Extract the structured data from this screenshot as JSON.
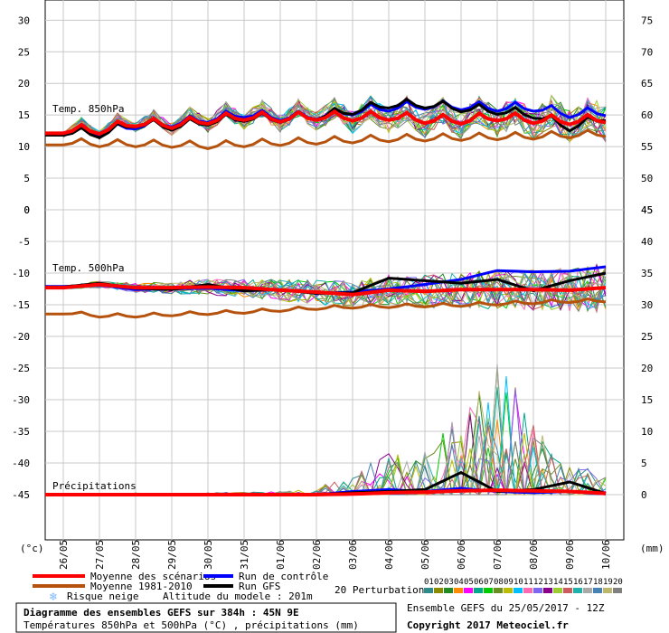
{
  "chart_data": {
    "type": "line",
    "x": [
      "26/05",
      "27/05",
      "28/05",
      "29/05",
      "30/05",
      "31/05",
      "01/06",
      "02/06",
      "03/06",
      "04/06",
      "05/06",
      "06/06",
      "07/06",
      "08/06",
      "09/06",
      "10/06"
    ],
    "panels": {
      "t850": {
        "label": "Temp. 850hPa",
        "left_ticks": [
          "30",
          "25",
          "20",
          "15",
          "10",
          "5",
          "0"
        ],
        "right_ticks": [
          "75",
          "70",
          "65",
          "60",
          "55",
          "50",
          "45"
        ],
        "ylim": [
          0,
          30
        ],
        "mean": [
          12.5,
          12.4,
          13.6,
          13.3,
          14.0,
          14.6,
          14.3,
          14.6,
          14.5,
          14.6,
          14.1,
          14.0,
          14.5,
          14.1,
          13.9,
          14.2
        ],
        "control": [
          12.3,
          12.0,
          13.2,
          13.5,
          14.2,
          15.0,
          14.5,
          14.7,
          15.4,
          16.0,
          16.3,
          16.2,
          16.0,
          16.0,
          15.0,
          15.3
        ],
        "gfs": [
          12.2,
          11.8,
          13.5,
          13.0,
          13.8,
          14.4,
          14.2,
          14.6,
          15.5,
          16.5,
          16.5,
          15.9,
          15.5,
          14.9,
          12.9,
          14.5
        ],
        "climatology": [
          10.6,
          10.3,
          10.3,
          10.2,
          10.0,
          10.3,
          10.5,
          10.7,
          10.9,
          11.1,
          11.2,
          11.3,
          11.4,
          11.5,
          11.7,
          11.9
        ]
      },
      "t500": {
        "label": "Temp. 500hPa",
        "left_ticks": [
          "0",
          "-5",
          "-10",
          "-15",
          "-20",
          "-25",
          "-30",
          "-35",
          "-40",
          "-45"
        ],
        "right_ticks": [
          "45",
          "40",
          "35",
          "30",
          "25",
          "20",
          "15",
          "10",
          "5",
          "0"
        ],
        "ylim": [
          -45,
          0
        ],
        "mean": [
          -12.3,
          -11.8,
          -12.3,
          -12.3,
          -12.2,
          -12.3,
          -12.7,
          -13.0,
          -13.4,
          -12.7,
          -12.9,
          -12.6,
          -12.6,
          -12.6,
          -12.7,
          -12.3
        ],
        "control": [
          -12.1,
          -11.9,
          -12.6,
          -12.5,
          -12.4,
          -12.8,
          -12.6,
          -13.2,
          -13.0,
          -12.5,
          -11.8,
          -11.0,
          -9.6,
          -9.8,
          -9.7,
          -9.0
        ],
        "gfs": [
          -12.2,
          -11.6,
          -12.4,
          -12.6,
          -11.8,
          -12.8,
          -12.6,
          -13.2,
          -13.1,
          -10.8,
          -11.2,
          -11.6,
          -11.0,
          -12.8,
          -11.2,
          -10.0
        ],
        "climatology": [
          -16.3,
          -16.8,
          -16.8,
          -16.6,
          -16.4,
          -16.2,
          -15.9,
          -15.6,
          -15.4,
          -15.3,
          -15.2,
          -15.1,
          -14.9,
          -14.7,
          -14.5,
          -14.4
        ]
      },
      "precip": {
        "label": "Précipitations",
        "mean": [
          0,
          0,
          0,
          0,
          0,
          0,
          0,
          0,
          0.1,
          0.3,
          0.4,
          0.6,
          0.7,
          0.6,
          0.5,
          0.2
        ],
        "control": [
          0,
          0,
          0,
          0,
          0,
          0,
          0,
          0,
          0.5,
          0.8,
          0.5,
          1.0,
          0.5,
          0.3,
          0.5,
          0.1
        ],
        "gfs": [
          0,
          0,
          0,
          0,
          0,
          0,
          0,
          0,
          0.3,
          0.5,
          0.8,
          3.5,
          0.5,
          0.8,
          2.0,
          0.2
        ],
        "max_member": [
          0,
          0,
          0.3,
          0,
          0.3,
          0.4,
          0.5,
          1.0,
          3.5,
          6.5,
          7.5,
          13.0,
          23.0,
          11.5,
          5.0,
          3.5
        ]
      }
    },
    "y_unit_left": "(°c)",
    "y_unit_right": "(mm)",
    "title": "Diagramme des ensembles GEFS sur 384h : 45N 9E",
    "subtitle": "Températures 850hPa et 500hPa (°C) , précipitations (mm)"
  },
  "legend": {
    "mean": "Moyenne des scénarios",
    "clim": "Moyenne 1981-2010",
    "snow": "Risque neige",
    "altitude": "Altitude du modele : 201m",
    "control": "Run de contrôle",
    "gfs": "Run GFS",
    "perturbations_label": "20 Perturbations",
    "perturbation_numbers": [
      "01",
      "02",
      "03",
      "04",
      "05",
      "06",
      "07",
      "08",
      "09",
      "10",
      "11",
      "12",
      "13",
      "14",
      "15",
      "16",
      "17",
      "18",
      "19",
      "20"
    ]
  },
  "colors": {
    "mean": "#ff0000",
    "clim": "#b5520e",
    "control": "#0000ff",
    "gfs": "#000000",
    "snow": "#7ab8ff",
    "perturbations": [
      "#2e8b8b",
      "#8b8b00",
      "#228b22",
      "#ff8c00",
      "#ff00ff",
      "#00aa88",
      "#00cc00",
      "#6b8e23",
      "#bcbc00",
      "#00bfff",
      "#ff69b4",
      "#7b68ee",
      "#8b008b",
      "#9acd32",
      "#cd5c5c",
      "#20b2aa",
      "#a9a9a9",
      "#4682b4",
      "#bdb76b",
      "#808080"
    ]
  },
  "footer": {
    "ensemble_info": "Ensemble GEFS du 25/05/2017 - 12Z",
    "copyright": "Copyright 2017 Meteociel.fr"
  }
}
